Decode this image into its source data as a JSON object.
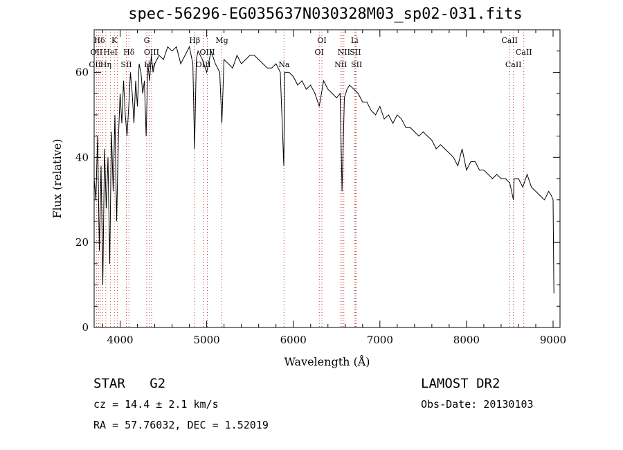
{
  "title": "spec-56296-EG035637N030328M03_sp02-031.fits",
  "footer": {
    "object_type": "STAR",
    "subclass": "G2",
    "survey": "LAMOST DR2",
    "redshift": "cz = 14.4 ± 2.1 km/s",
    "obs_date": "Obs-Date: 20130103",
    "coords": "RA =  57.76032, DEC =   1.52019"
  },
  "chart_data": {
    "type": "line",
    "title": "spec-56296-EG035637N030328M03_sp02-031.fits",
    "xlabel": "Wavelength (Å)",
    "ylabel": "Flux (relative)",
    "xlim": [
      3700,
      9080
    ],
    "ylim": [
      0,
      70
    ],
    "xticks": [
      4000,
      5000,
      6000,
      7000,
      8000,
      9000
    ],
    "yticks": [
      0,
      20,
      40,
      60
    ],
    "grid": false,
    "series": [
      {
        "name": "",
        "x": [
          3700,
          3720,
          3740,
          3760,
          3780,
          3800,
          3820,
          3840,
          3860,
          3880,
          3900,
          3920,
          3940,
          3960,
          3980,
          4000,
          4020,
          4040,
          4060,
          4080,
          4100,
          4120,
          4140,
          4160,
          4180,
          4200,
          4220,
          4240,
          4260,
          4280,
          4300,
          4320,
          4340,
          4360,
          4380,
          4400,
          4450,
          4500,
          4550,
          4600,
          4650,
          4700,
          4750,
          4800,
          4840,
          4860,
          4880,
          4900,
          4950,
          5000,
          5050,
          5100,
          5150,
          5175,
          5200,
          5250,
          5300,
          5350,
          5400,
          5450,
          5500,
          5550,
          5600,
          5650,
          5700,
          5750,
          5800,
          5850,
          5890,
          5900,
          5950,
          6000,
          6050,
          6100,
          6150,
          6200,
          6250,
          6300,
          6350,
          6400,
          6450,
          6500,
          6540,
          6563,
          6590,
          6620,
          6650,
          6700,
          6750,
          6800,
          6850,
          6900,
          6950,
          7000,
          7050,
          7100,
          7150,
          7200,
          7250,
          7300,
          7350,
          7400,
          7450,
          7500,
          7550,
          7600,
          7650,
          7700,
          7750,
          7800,
          7850,
          7900,
          7950,
          8000,
          8050,
          8100,
          8150,
          8200,
          8250,
          8300,
          8350,
          8400,
          8450,
          8500,
          8542,
          8550,
          8600,
          8650,
          8700,
          8750,
          8800,
          8850,
          8900,
          8950,
          8980,
          9000,
          9010
        ],
        "y": [
          35,
          30,
          45,
          18,
          38,
          10,
          42,
          28,
          40,
          15,
          46,
          32,
          50,
          25,
          44,
          55,
          48,
          58,
          50,
          45,
          52,
          60,
          55,
          48,
          58,
          52,
          62,
          60,
          55,
          58,
          45,
          62,
          58,
          64,
          60,
          62,
          64,
          63,
          66,
          65,
          66,
          62,
          64,
          66,
          62,
          42,
          63,
          65,
          63,
          60,
          65,
          62,
          60,
          48,
          63,
          62,
          61,
          64,
          62,
          63,
          64,
          64,
          63,
          62,
          61,
          61,
          62,
          60,
          38,
          60,
          60,
          59,
          57,
          58,
          56,
          57,
          55,
          52,
          58,
          56,
          55,
          54,
          55,
          32,
          54,
          56,
          57,
          56,
          55,
          53,
          53,
          51,
          50,
          52,
          49,
          50,
          48,
          50,
          49,
          47,
          47,
          46,
          45,
          46,
          45,
          44,
          42,
          43,
          42,
          41,
          40,
          38,
          42,
          37,
          39,
          39,
          37,
          37,
          36,
          35,
          36,
          35,
          35,
          34,
          30,
          35,
          35,
          33,
          36,
          33,
          32,
          31,
          30,
          32,
          31,
          30,
          8
        ]
      }
    ],
    "line_labels": [
      {
        "label": "Hδ",
        "x": 3760,
        "row": 0
      },
      {
        "label": "K",
        "x": 3933,
        "row": 0
      },
      {
        "label": "G",
        "x": 4308,
        "row": 0
      },
      {
        "label": "Hβ",
        "x": 4861,
        "row": 0
      },
      {
        "label": "Mg",
        "x": 5175,
        "row": 0
      },
      {
        "label": "OI",
        "x": 6330,
        "row": 0
      },
      {
        "label": "Li",
        "x": 6708,
        "row": 0
      },
      {
        "label": "CaII",
        "x": 8498,
        "row": 0
      },
      {
        "label": "OII",
        "x": 3727,
        "row": 1
      },
      {
        "label": "HeI",
        "x": 3889,
        "row": 1
      },
      {
        "label": "Hδ",
        "x": 4102,
        "row": 1
      },
      {
        "label": "OIII",
        "x": 4363,
        "row": 1
      },
      {
        "label": "OIII",
        "x": 5007,
        "row": 1
      },
      {
        "label": "OI",
        "x": 6300,
        "row": 1
      },
      {
        "label": "NII",
        "x": 6584,
        "row": 1
      },
      {
        "label": "SII",
        "x": 6717,
        "row": 1
      },
      {
        "label": "CaII",
        "x": 8662,
        "row": 1
      },
      {
        "label": "OII",
        "x": 3710,
        "row": 2
      },
      {
        "label": "Hη",
        "x": 3835,
        "row": 2
      },
      {
        "label": "SII",
        "x": 4072,
        "row": 2
      },
      {
        "label": "Hγ",
        "x": 4340,
        "row": 2
      },
      {
        "label": "OIII",
        "x": 4960,
        "row": 2
      },
      {
        "label": "Na",
        "x": 5893,
        "row": 2
      },
      {
        "label": "NII",
        "x": 6548,
        "row": 2
      },
      {
        "label": "SII",
        "x": 6731,
        "row": 2
      },
      {
        "label": "CaII",
        "x": 8542,
        "row": 2
      }
    ],
    "line_markers": [
      3727,
      3750,
      3770,
      3798,
      3835,
      3889,
      3933,
      3968,
      4072,
      4102,
      4308,
      4340,
      4363,
      4861,
      4960,
      5007,
      5175,
      5893,
      6300,
      6330,
      6548,
      6563,
      6584,
      6708,
      6717,
      6731,
      8498,
      8542,
      8662
    ]
  }
}
